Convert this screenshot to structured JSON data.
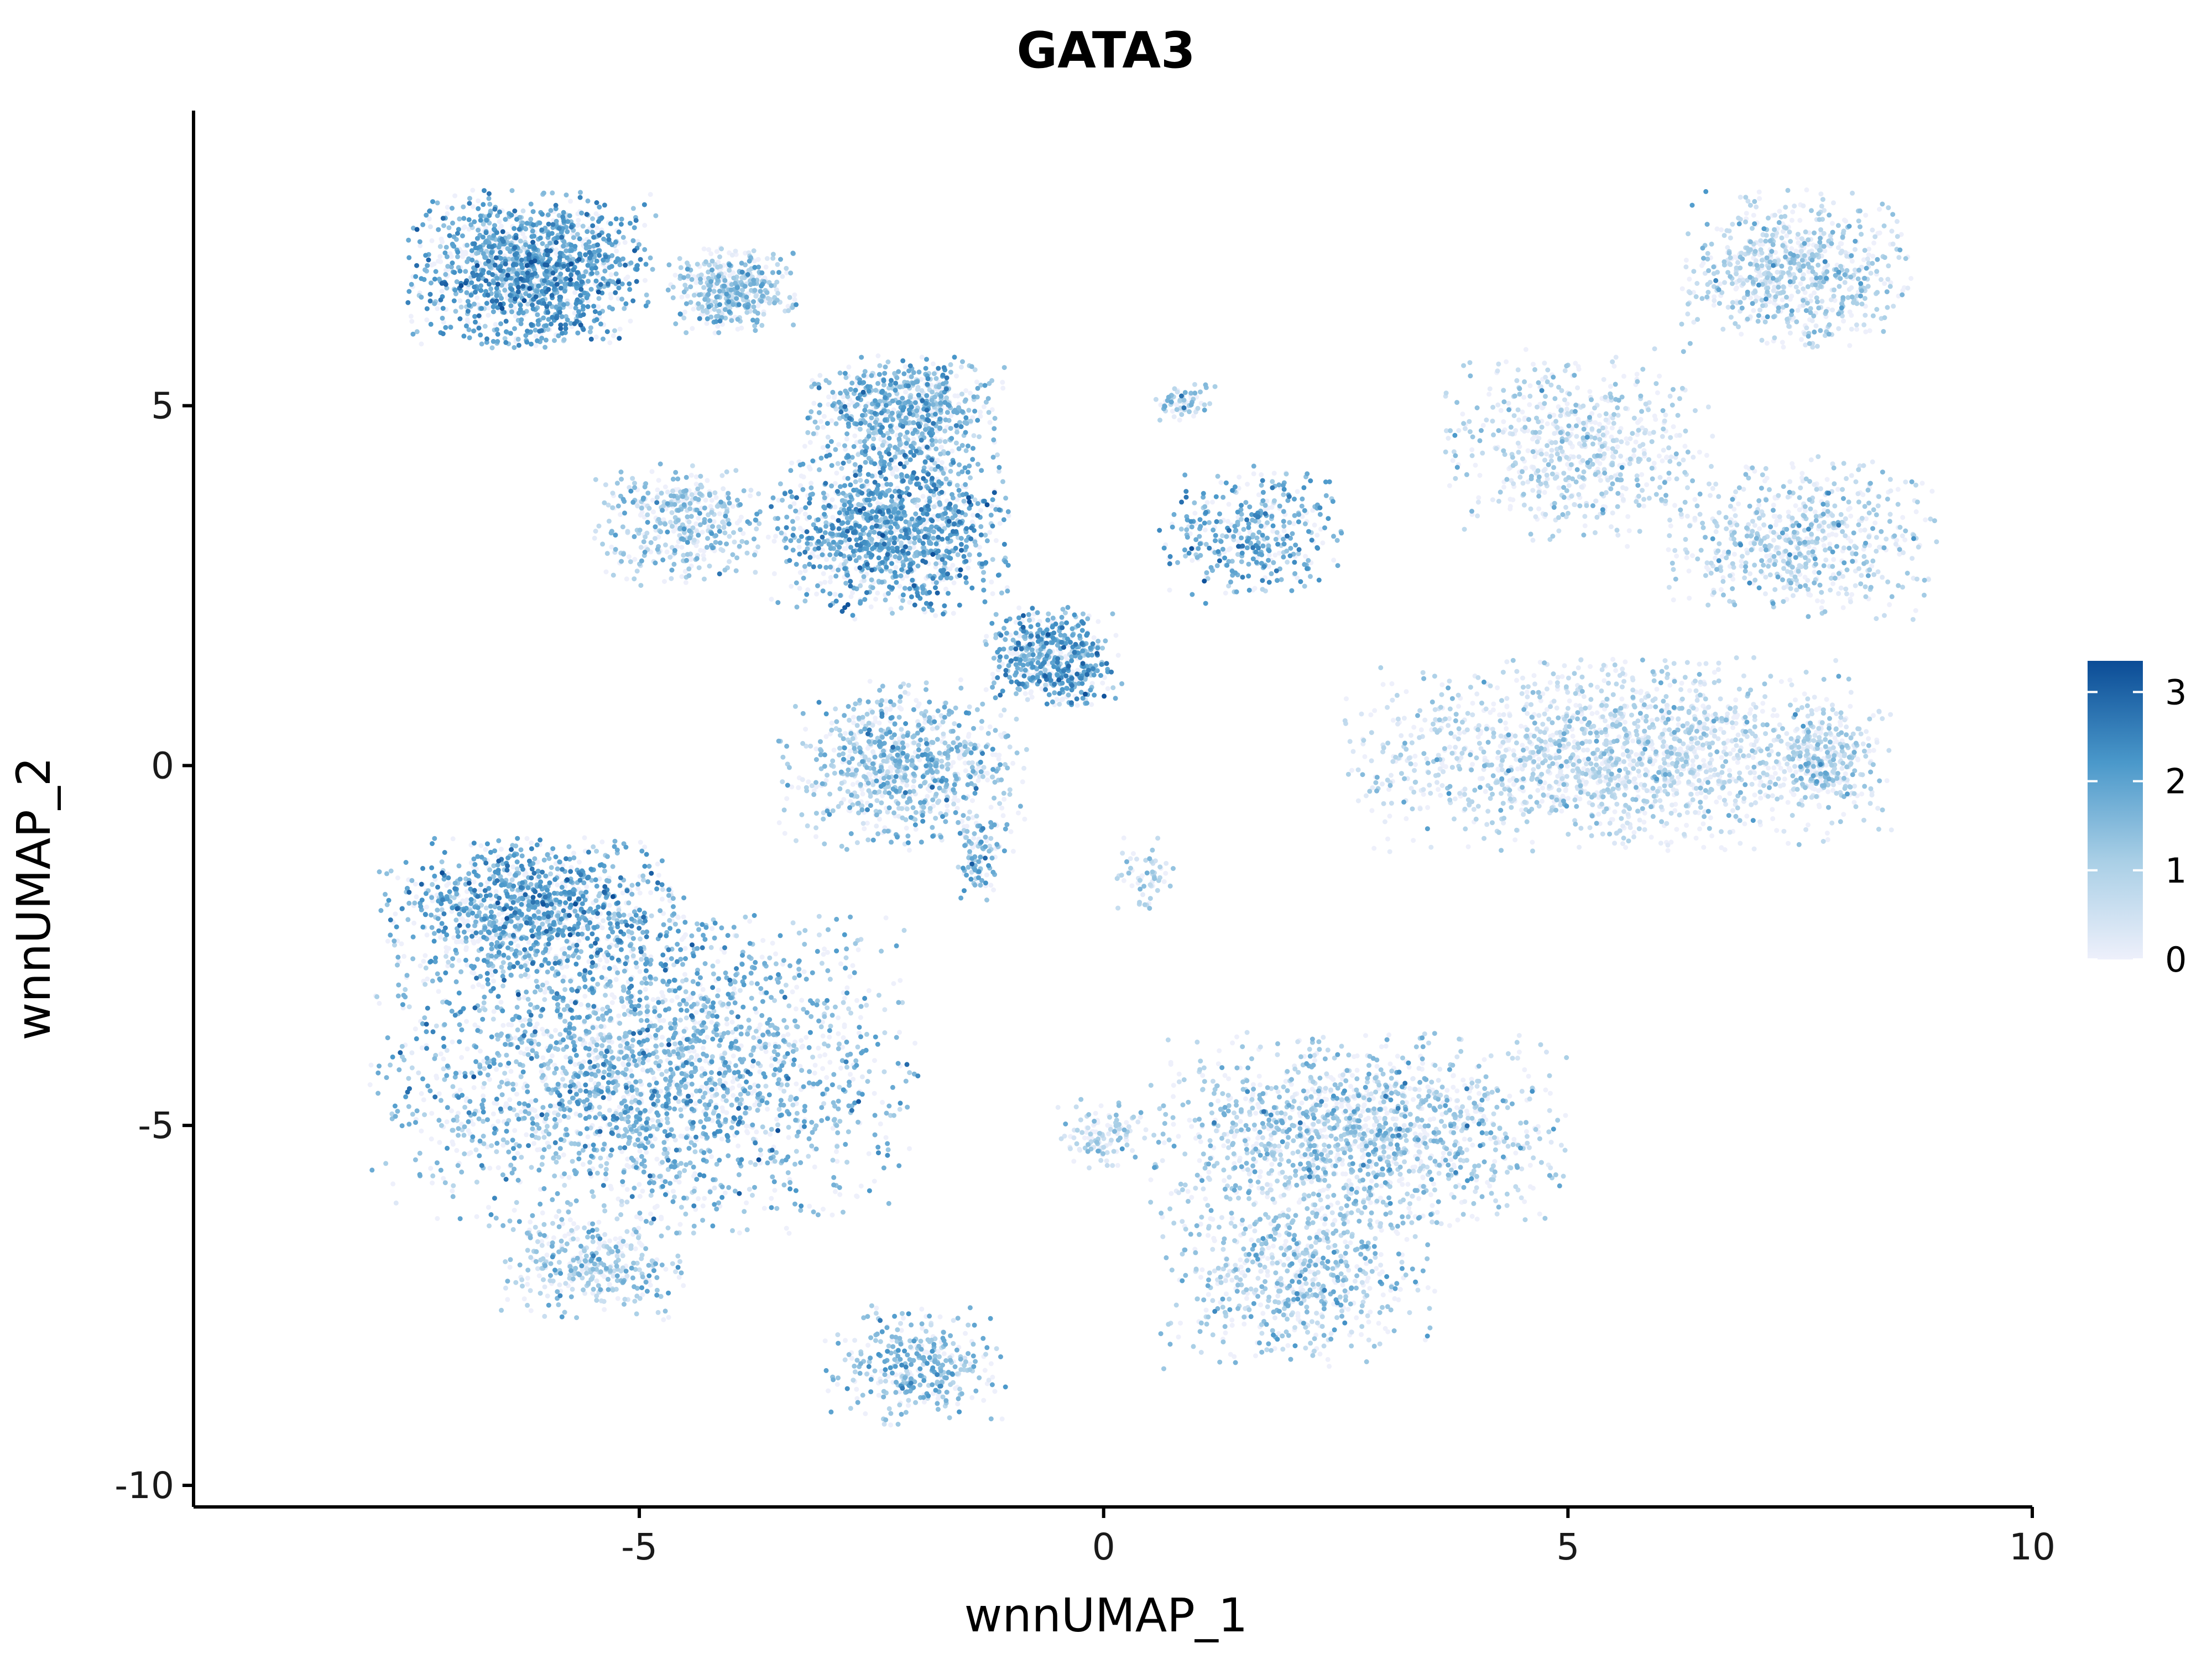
{
  "chart_data": {
    "type": "scatter",
    "title": "GATA3",
    "xlabel": "wnnUMAP_1",
    "ylabel": "wnnUMAP_2",
    "xlim": [
      -9.8,
      10
    ],
    "ylim": [
      -10.3,
      9.1
    ],
    "x_ticks": [
      -5,
      0,
      5,
      10
    ],
    "x_tick_labels": [
      "-5",
      "0",
      "5",
      "10"
    ],
    "y_ticks": [
      -10,
      -5,
      0,
      5
    ],
    "y_tick_labels": [
      "-10",
      "-5",
      "0",
      "5"
    ],
    "grid": false,
    "legend": {
      "type": "colorbar",
      "placement": "right",
      "ticks": [
        0,
        1,
        2,
        3
      ],
      "tick_labels": [
        "0",
        "1",
        "2",
        "3"
      ],
      "range": [
        0,
        3.35
      ],
      "colors": [
        "#eef0fb",
        "#a9cfe6",
        "#4a98ca",
        "#0b4c96"
      ]
    },
    "point_color_low": "#eef0fb",
    "point_color_high": "#0b4c96",
    "clusters": [
      {
        "x": [
          -7.5,
          -4.8
        ],
        "y": [
          5.8,
          8.0
        ],
        "expr": 1.9,
        "n": 1400
      },
      {
        "x": [
          -4.7,
          -3.3
        ],
        "y": [
          6.0,
          7.2
        ],
        "expr": 1.2,
        "n": 420
      },
      {
        "x": [
          -3.6,
          -1.0
        ],
        "y": [
          2.0,
          4.6
        ],
        "expr": 1.9,
        "n": 1300
      },
      {
        "x": [
          -3.2,
          -1.0
        ],
        "y": [
          4.2,
          5.7
        ],
        "expr": 1.6,
        "n": 650
      },
      {
        "x": [
          -1.3,
          0.2
        ],
        "y": [
          0.8,
          2.2
        ],
        "expr": 1.9,
        "n": 550
      },
      {
        "x": [
          -3.5,
          -0.8
        ],
        "y": [
          -1.2,
          1.2
        ],
        "expr": 1.3,
        "n": 850
      },
      {
        "x": [
          -1.6,
          -1.1
        ],
        "y": [
          -1.9,
          -0.7
        ],
        "expr": 1.6,
        "n": 90
      },
      {
        "x": [
          -5.5,
          -3.6
        ],
        "y": [
          2.5,
          4.2
        ],
        "expr": 1.2,
        "n": 420
      },
      {
        "x": [
          0.6,
          2.6
        ],
        "y": [
          2.2,
          4.2
        ],
        "expr": 1.8,
        "n": 380
      },
      {
        "x": [
          0.5,
          1.2
        ],
        "y": [
          4.8,
          5.3
        ],
        "expr": 1.2,
        "n": 70
      },
      {
        "x": [
          0.1,
          0.8
        ],
        "y": [
          -2.0,
          -1.0
        ],
        "expr": 0.9,
        "n": 60
      },
      {
        "x": [
          2.5,
          8.5
        ],
        "y": [
          -1.2,
          1.5
        ],
        "expr": 0.7,
        "n": 1800
      },
      {
        "x": [
          7.2,
          8.3
        ],
        "y": [
          -0.6,
          0.8
        ],
        "expr": 1.0,
        "n": 260
      },
      {
        "x": [
          6.0,
          9.0
        ],
        "y": [
          2.0,
          4.3
        ],
        "expr": 0.9,
        "n": 650
      },
      {
        "x": [
          6.2,
          8.7
        ],
        "y": [
          5.8,
          8.0
        ],
        "expr": 0.9,
        "n": 750
      },
      {
        "x": [
          3.6,
          6.6
        ],
        "y": [
          3.0,
          5.8
        ],
        "expr": 0.8,
        "n": 650
      },
      {
        "x": [
          -7.8,
          -4.5
        ],
        "y": [
          -3.0,
          -1.0
        ],
        "expr": 1.9,
        "n": 1100
      },
      {
        "x": [
          -7.9,
          -2.0
        ],
        "y": [
          -6.5,
          -2.0
        ],
        "expr": 1.6,
        "n": 2600
      },
      {
        "x": [
          -6.5,
          -4.5
        ],
        "y": [
          -7.7,
          -6.2
        ],
        "expr": 1.2,
        "n": 350
      },
      {
        "x": [
          -3.0,
          -1.0
        ],
        "y": [
          -9.2,
          -7.5
        ],
        "expr": 1.5,
        "n": 360
      },
      {
        "x": [
          0.5,
          5.0
        ],
        "y": [
          -6.5,
          -3.7
        ],
        "expr": 1.1,
        "n": 1500
      },
      {
        "x": [
          0.6,
          3.6
        ],
        "y": [
          -8.4,
          -5.8
        ],
        "expr": 1.2,
        "n": 700
      },
      {
        "x": [
          -0.5,
          0.5
        ],
        "y": [
          -5.6,
          -4.6
        ],
        "expr": 0.8,
        "n": 120
      }
    ]
  }
}
